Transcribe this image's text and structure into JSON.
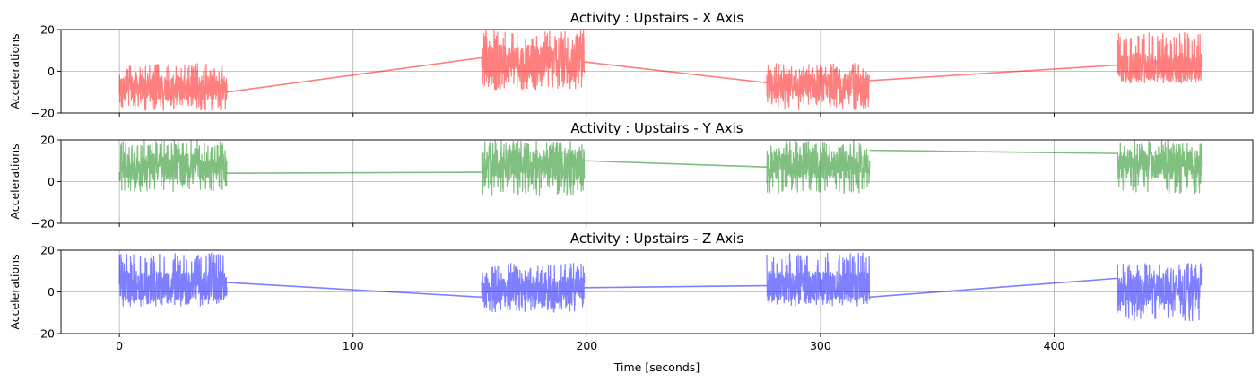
{
  "chart_data": [
    {
      "type": "line",
      "title": "Activity : Upstairs - X Axis",
      "ylabel": "Accelerations",
      "xlabel": "",
      "xlim": [
        -25,
        485
      ],
      "ylim": [
        -20,
        20
      ],
      "yticks": [
        "−20",
        "0",
        "20"
      ],
      "xticks": [],
      "grid": true,
      "color": "#ff0000",
      "alpha": 0.5,
      "series": [
        {
          "segments": [
            {
              "x": [
                0,
                46
              ],
              "mean": -8,
              "low": -19,
              "high": 4
            },
            {
              "x": [
                155,
                199
              ],
              "mean": 5,
              "low": -9,
              "high": 20
            },
            {
              "x": [
                277,
                321
              ],
              "mean": -7,
              "low": -19,
              "high": 4
            },
            {
              "x": [
                427,
                463
              ],
              "mean": 2,
              "low": -6,
              "high": 19
            }
          ],
          "connectors": [
            {
              "x": [
                46,
                155
              ],
              "y": [
                -10,
                6.5
              ]
            },
            {
              "x": [
                199,
                277
              ],
              "y": [
                4.5,
                -5.5
              ]
            },
            {
              "x": [
                321,
                427
              ],
              "y": [
                -4.5,
                3
              ]
            }
          ]
        }
      ]
    },
    {
      "type": "line",
      "title": "Activity : Upstairs - Y Axis",
      "ylabel": "Accelerations",
      "xlabel": "",
      "xlim": [
        -25,
        485
      ],
      "ylim": [
        -20,
        20
      ],
      "yticks": [
        "−20",
        "0",
        "20"
      ],
      "xticks": [],
      "grid": true,
      "color": "#008000",
      "alpha": 0.5,
      "series": [
        {
          "segments": [
            {
              "x": [
                0,
                46
              ],
              "mean": 7,
              "low": -5,
              "high": 20
            },
            {
              "x": [
                155,
                199
              ],
              "mean": 8,
              "low": -7,
              "high": 20
            },
            {
              "x": [
                277,
                321
              ],
              "mean": 8,
              "low": -6,
              "high": 20
            },
            {
              "x": [
                427,
                463
              ],
              "mean": 8,
              "low": -6,
              "high": 20
            }
          ],
          "connectors": [
            {
              "x": [
                46,
                155
              ],
              "y": [
                4,
                4.5
              ]
            },
            {
              "x": [
                199,
                277
              ],
              "y": [
                10,
                7
              ]
            },
            {
              "x": [
                321,
                427
              ],
              "y": [
                15,
                13.5
              ]
            }
          ]
        }
      ]
    },
    {
      "type": "line",
      "title": "Activity : Upstairs - Z Axis",
      "ylabel": "Accelerations",
      "xlabel": "Time [seconds]",
      "xlim": [
        -25,
        485
      ],
      "ylim": [
        -20,
        20
      ],
      "yticks": [
        "−20",
        "0",
        "20"
      ],
      "xticks": [
        "0",
        "100",
        "200",
        "300",
        "400"
      ],
      "xtick_values": [
        0,
        100,
        200,
        300,
        400
      ],
      "grid": true,
      "color": "#0000ff",
      "alpha": 0.5,
      "series": [
        {
          "segments": [
            {
              "x": [
                0,
                46
              ],
              "mean": 3,
              "low": -7,
              "high": 19
            },
            {
              "x": [
                155,
                199
              ],
              "mean": 1,
              "low": -10,
              "high": 14
            },
            {
              "x": [
                277,
                321
              ],
              "mean": 3,
              "low": -7,
              "high": 19
            },
            {
              "x": [
                427,
                463
              ],
              "mean": 1,
              "low": -14,
              "high": 14
            }
          ],
          "connectors": [
            {
              "x": [
                46,
                155
              ],
              "y": [
                4.5,
                -2.5
              ]
            },
            {
              "x": [
                199,
                277
              ],
              "y": [
                2,
                3
              ]
            },
            {
              "x": [
                321,
                427
              ],
              "y": [
                -2.5,
                6.5
              ]
            }
          ]
        }
      ]
    }
  ]
}
